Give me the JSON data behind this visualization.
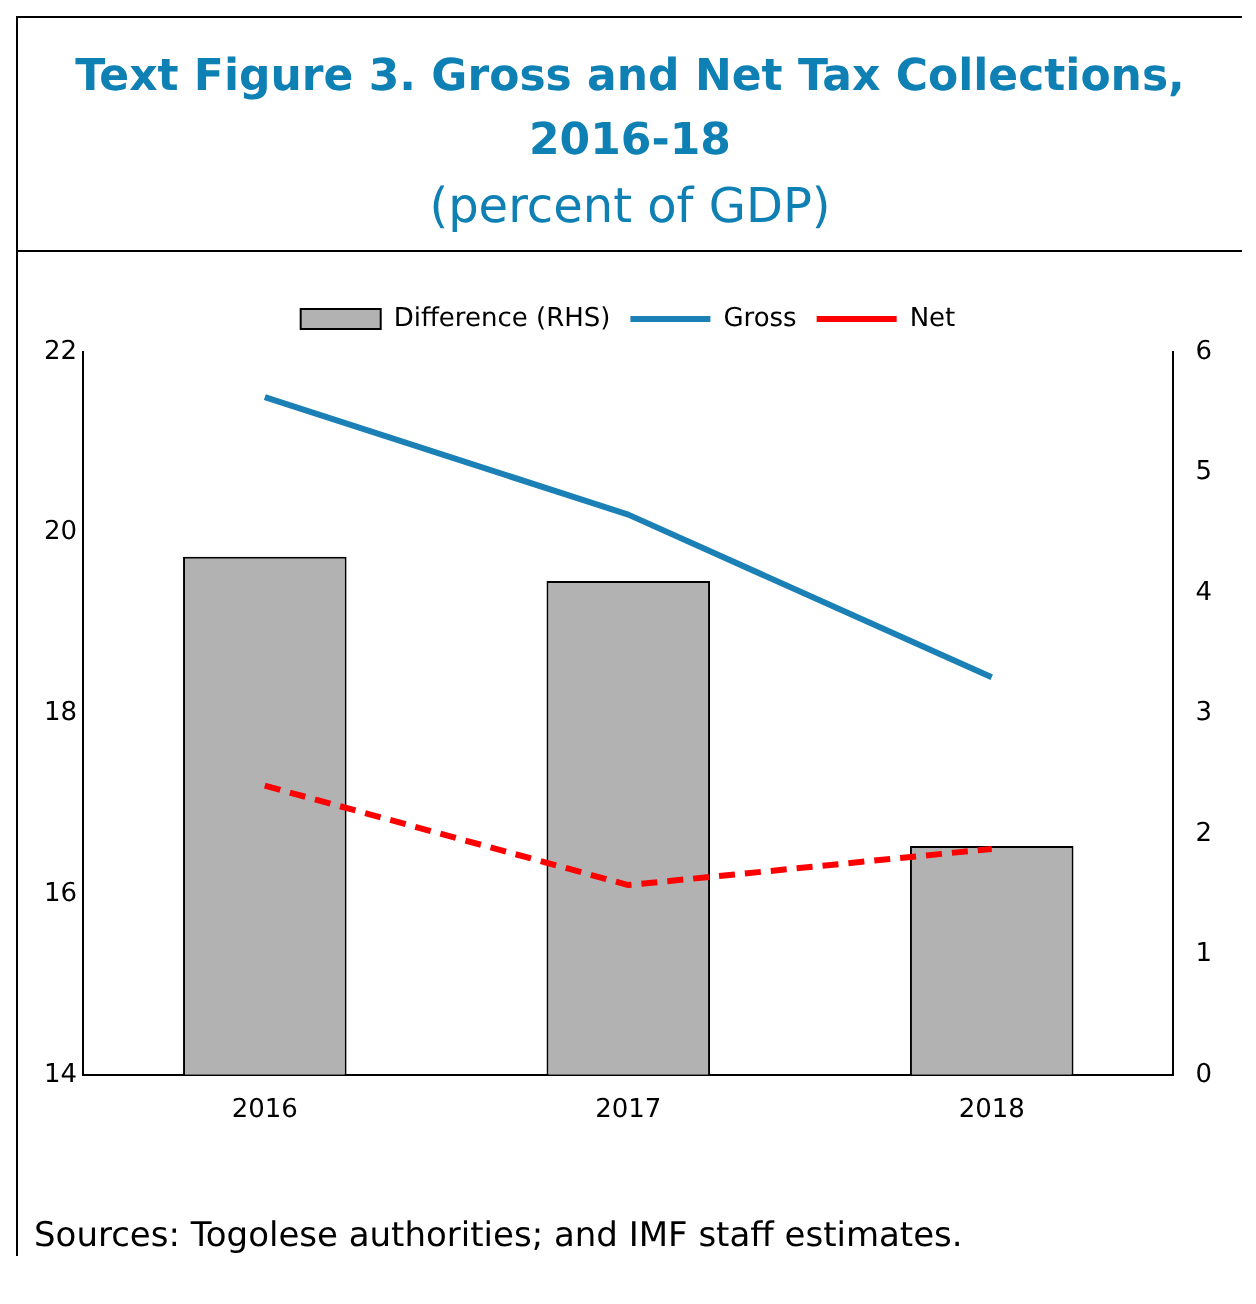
{
  "chart_data": {
    "type": "bar",
    "title": "Text Figure 3. Gross and Net Tax Collections, 2016-18",
    "subtitle": "(percent of GDP)",
    "categories": [
      "2016",
      "2017",
      "2018"
    ],
    "series": [
      {
        "name": "Difference (RHS)",
        "axis": "y2",
        "color": "#b2b2b2",
        "values": [
          4.3,
          4.1,
          1.9
        ]
      },
      {
        "name": "Gross",
        "type": "line",
        "color": "#1a80b6",
        "values": [
          21.5,
          20.2,
          18.4
        ]
      },
      {
        "name": "Net",
        "type": "line",
        "color": "#ff0000",
        "line_style": "dashed",
        "values": [
          17.2,
          16.1,
          16.5
        ]
      }
    ],
    "ylim": [
      14,
      22
    ],
    "yticks": [
      14,
      16,
      18,
      20,
      22
    ],
    "y2lim": [
      0,
      6
    ],
    "y2ticks": [
      0,
      1,
      2,
      3,
      4,
      5,
      6
    ],
    "legend": "top",
    "grid": false,
    "annotations": [
      "Sources: Togolese authorities; and IMF staff estimates."
    ]
  }
}
